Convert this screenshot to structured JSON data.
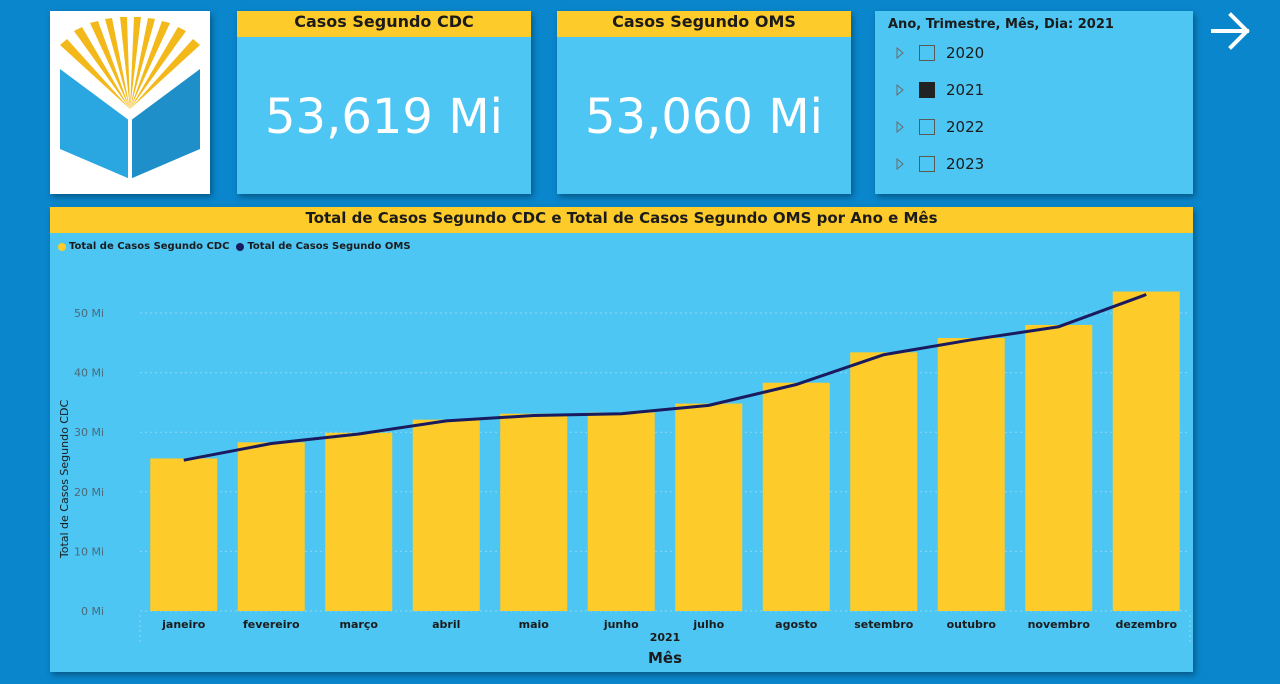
{
  "logo": {
    "name": "logo"
  },
  "kpi_cdc": {
    "title": "Casos Segundo CDC",
    "value": "53,619 Mi"
  },
  "kpi_oms": {
    "title": "Casos Segundo OMS",
    "value": "53,060 Mi"
  },
  "slicer": {
    "header": "Ano, Trimestre, Mês, Dia: 2021",
    "items": [
      {
        "label": "2020",
        "checked": false
      },
      {
        "label": "2021",
        "checked": true
      },
      {
        "label": "2022",
        "checked": false
      },
      {
        "label": "2023",
        "checked": false
      }
    ]
  },
  "nav": {
    "icon": "arrow-right-icon"
  },
  "colors": {
    "bar": "#fdcb2a",
    "line": "#1a1a5e",
    "background": "#0a86cc",
    "card": "#4dc6f3"
  },
  "chart_data": {
    "type": "bar",
    "title": "Total de Casos Segundo CDC e Total de Casos Segundo OMS por Ano e Mês",
    "xlabel": "Mês",
    "x_group_label": "2021",
    "ylabel": "Total de Casos Segundo CDC",
    "ylim": [
      0,
      55
    ],
    "yticks": [
      "0 Mi",
      "10 Mi",
      "20 Mi",
      "30 Mi",
      "40 Mi",
      "50 Mi"
    ],
    "ytick_values": [
      0,
      10,
      20,
      30,
      40,
      50
    ],
    "legend_position": "top-left",
    "grid": true,
    "categories": [
      "janeiro",
      "fevereiro",
      "março",
      "abril",
      "maio",
      "junho",
      "julho",
      "agosto",
      "setembro",
      "outubro",
      "novembro",
      "dezembro"
    ],
    "series": [
      {
        "name": "Total de Casos Segundo CDC",
        "type": "bar",
        "color": "#fdcb2a",
        "values": [
          25.6,
          28.3,
          29.9,
          32.1,
          33.1,
          33.3,
          34.8,
          38.3,
          43.4,
          45.8,
          48.0,
          53.6
        ]
      },
      {
        "name": "Total de Casos Segundo OMS",
        "type": "line",
        "color": "#1a1a5e",
        "values": [
          25.3,
          28.1,
          29.7,
          31.9,
          32.8,
          33.1,
          34.5,
          38.0,
          43.0,
          45.5,
          47.7,
          53.1
        ]
      }
    ]
  }
}
